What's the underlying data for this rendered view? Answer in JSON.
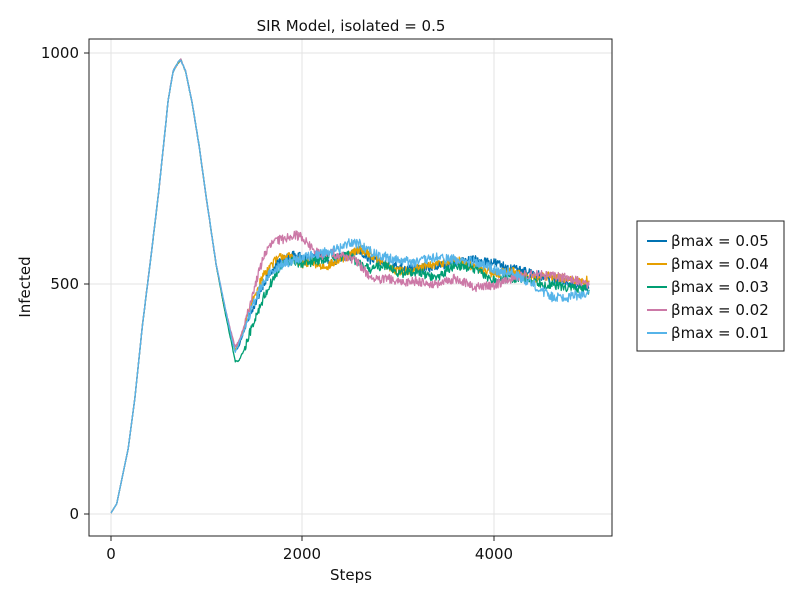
{
  "chart_data": {
    "type": "line",
    "title": "SIR Model, isolated = 0.5",
    "xlabel": "Steps",
    "ylabel": "Infected",
    "xlim": [
      -230,
      5240
    ],
    "ylim": [
      -50,
      1030
    ],
    "xticks": [
      0,
      2000,
      4000
    ],
    "xtick_labels": [
      "0",
      "2000",
      "4000"
    ],
    "yticks": [
      0,
      500,
      1000
    ],
    "ytick_labels": [
      "0",
      "500",
      "1000"
    ],
    "grid": true,
    "legend_position": "right",
    "series": [
      {
        "name": "βmax = 0.05",
        "color": "#0072b2",
        "noise": 10,
        "x": [
          0,
          60,
          180,
          250,
          330,
          420,
          500,
          560,
          600,
          650,
          700,
          730,
          780,
          850,
          920,
          1000,
          1100,
          1200,
          1260,
          1300,
          1340,
          1400,
          1500,
          1600,
          1700,
          1800,
          1900,
          2000,
          2100,
          2200,
          2300,
          2400,
          2500,
          2600,
          2700,
          2800,
          2900,
          3000,
          3200,
          3400,
          3600,
          3800,
          4000,
          4200,
          4400,
          4600,
          4800,
          5000
        ],
        "y": [
          0,
          20,
          140,
          250,
          410,
          560,
          700,
          820,
          900,
          960,
          978,
          985,
          960,
          890,
          800,
          680,
          540,
          430,
          380,
          350,
          365,
          400,
          450,
          500,
          535,
          550,
          560,
          555,
          550,
          560,
          545,
          555,
          560,
          570,
          550,
          545,
          540,
          535,
          530,
          535,
          545,
          550,
          545,
          530,
          520,
          510,
          500,
          490
        ]
      },
      {
        "name": "βmax = 0.04",
        "color": "#e69f00",
        "noise": 10,
        "x": [
          0,
          60,
          180,
          250,
          330,
          420,
          500,
          560,
          600,
          650,
          700,
          730,
          780,
          850,
          920,
          1000,
          1100,
          1200,
          1260,
          1300,
          1340,
          1400,
          1500,
          1600,
          1700,
          1800,
          1900,
          2000,
          2100,
          2200,
          2300,
          2400,
          2500,
          2600,
          2700,
          2800,
          2900,
          3000,
          3200,
          3400,
          3600,
          3800,
          4000,
          4200,
          4400,
          4600,
          4800,
          5000
        ],
        "y": [
          0,
          20,
          140,
          250,
          410,
          560,
          700,
          820,
          900,
          960,
          978,
          985,
          960,
          890,
          800,
          680,
          540,
          430,
          380,
          355,
          370,
          410,
          470,
          520,
          545,
          560,
          555,
          540,
          545,
          535,
          540,
          550,
          560,
          575,
          565,
          550,
          535,
          525,
          530,
          540,
          550,
          535,
          520,
          525,
          510,
          515,
          505,
          505
        ]
      },
      {
        "name": "βmax = 0.03",
        "color": "#009e73",
        "noise": 10,
        "x": [
          0,
          60,
          180,
          250,
          330,
          420,
          500,
          560,
          600,
          650,
          700,
          730,
          780,
          850,
          920,
          1000,
          1100,
          1200,
          1260,
          1300,
          1340,
          1400,
          1500,
          1600,
          1700,
          1800,
          1900,
          2000,
          2100,
          2200,
          2300,
          2400,
          2500,
          2600,
          2700,
          2800,
          2900,
          3000,
          3200,
          3400,
          3600,
          3800,
          4000,
          4200,
          4400,
          4600,
          4800,
          5000
        ],
        "y": [
          0,
          20,
          140,
          250,
          410,
          560,
          700,
          820,
          900,
          960,
          978,
          985,
          960,
          890,
          800,
          680,
          540,
          430,
          370,
          330,
          330,
          360,
          420,
          470,
          510,
          540,
          548,
          540,
          545,
          550,
          560,
          555,
          560,
          540,
          530,
          535,
          540,
          520,
          525,
          510,
          540,
          530,
          505,
          510,
          505,
          495,
          490,
          485
        ]
      },
      {
        "name": "βmax = 0.02",
        "color": "#cc79a7",
        "noise": 10,
        "x": [
          0,
          60,
          180,
          250,
          330,
          420,
          500,
          560,
          600,
          650,
          700,
          730,
          780,
          850,
          920,
          1000,
          1100,
          1200,
          1260,
          1300,
          1340,
          1400,
          1500,
          1600,
          1700,
          1800,
          1900,
          2000,
          2100,
          2200,
          2300,
          2400,
          2500,
          2600,
          2700,
          2800,
          2900,
          3000,
          3200,
          3400,
          3600,
          3800,
          4000,
          4200,
          4400,
          4600,
          4800,
          5000
        ],
        "y": [
          0,
          20,
          140,
          250,
          410,
          560,
          700,
          820,
          900,
          960,
          978,
          985,
          960,
          890,
          800,
          680,
          540,
          440,
          390,
          360,
          375,
          410,
          490,
          560,
          590,
          595,
          605,
          600,
          575,
          560,
          565,
          560,
          555,
          540,
          515,
          505,
          510,
          500,
          505,
          495,
          510,
          490,
          495,
          510,
          520,
          515,
          510,
          495
        ]
      },
      {
        "name": "βmax = 0.01",
        "color": "#56b4e9",
        "noise": 11,
        "x": [
          0,
          60,
          180,
          250,
          330,
          420,
          500,
          560,
          600,
          650,
          700,
          730,
          780,
          850,
          920,
          1000,
          1100,
          1200,
          1260,
          1300,
          1340,
          1400,
          1500,
          1600,
          1700,
          1800,
          1900,
          2000,
          2100,
          2200,
          2300,
          2400,
          2500,
          2600,
          2700,
          2800,
          2900,
          3000,
          3200,
          3400,
          3600,
          3800,
          4000,
          4200,
          4400,
          4600,
          4800,
          5000
        ],
        "y": [
          0,
          20,
          140,
          250,
          410,
          560,
          700,
          820,
          900,
          960,
          978,
          985,
          960,
          890,
          800,
          680,
          540,
          440,
          380,
          350,
          370,
          400,
          460,
          505,
          530,
          540,
          550,
          555,
          560,
          565,
          570,
          575,
          590,
          585,
          570,
          560,
          555,
          550,
          545,
          555,
          550,
          545,
          530,
          520,
          500,
          470,
          470,
          480
        ]
      }
    ]
  }
}
